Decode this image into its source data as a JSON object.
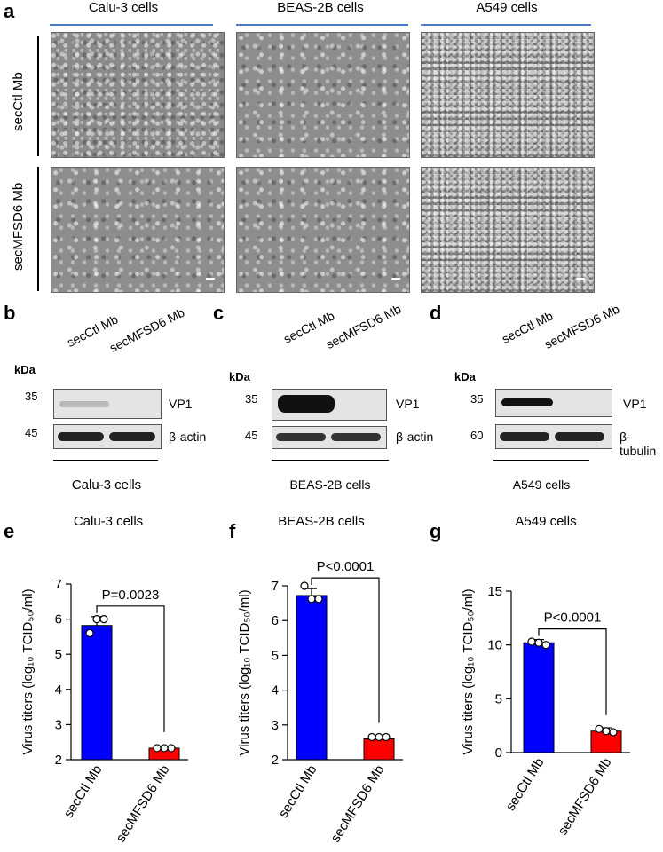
{
  "panel_labels": {
    "a": "a",
    "b": "b",
    "c": "c",
    "d": "d",
    "e": "e",
    "f": "f",
    "g": "g"
  },
  "panel_a": {
    "columns": [
      "Calu-3 cells",
      "BEAS-2B cells",
      "A549 cells"
    ],
    "rows": [
      "secCtl Mb",
      "secMFSD6 Mb"
    ]
  },
  "western": [
    {
      "lanes": [
        "secCtl Mb",
        "secMFSD6 Mb"
      ],
      "kda": "kDa",
      "mw_top": "35",
      "mw_bottom": "45",
      "band_top": "VP1",
      "band_bottom": "β-actin",
      "cell": "Calu-3 cells"
    },
    {
      "lanes": [
        "secCtl Mb",
        "secMFSD6 Mb"
      ],
      "kda": "kDa",
      "mw_top": "35",
      "mw_bottom": "45",
      "band_top": "VP1",
      "band_bottom": "β-actin",
      "cell": "BEAS-2B cells"
    },
    {
      "lanes": [
        "secCtl Mb",
        "secMFSD6 Mb"
      ],
      "kda": "kDa",
      "mw_top": "35",
      "mw_bottom": "60",
      "band_top": "VP1",
      "band_bottom": "β-tubulin",
      "cell": "A549 cells"
    }
  ],
  "colors": {
    "ctl": "#0000ff",
    "mfsd6": "#ff0000",
    "title_line": "#4a7cc9"
  },
  "chart_data": [
    {
      "type": "bar",
      "title": "Calu-3 cells",
      "ylabel": "Virus titers (log₁₀ TCID₅₀/ml)",
      "categories": [
        "secCtl Mb",
        "secMFSD6 Mb"
      ],
      "values": [
        5.82,
        2.33
      ],
      "errors": [
        0.25,
        0.05
      ],
      "points": [
        [
          5.6,
          6.0,
          6.0
        ],
        [
          2.33,
          2.33,
          2.33
        ]
      ],
      "ylim": [
        2,
        7
      ],
      "yticks": [
        2,
        3,
        4,
        5,
        6,
        7
      ],
      "pvalue": "P=0.0023"
    },
    {
      "type": "bar",
      "title": "BEAS-2B cells",
      "ylabel": "Virus titers (log₁₀ TCID₅₀/ml)",
      "categories": [
        "secCtl Mb",
        "secMFSD6 Mb"
      ],
      "values": [
        6.72,
        2.6
      ],
      "errors": [
        0.2,
        0.1
      ],
      "points": [
        [
          7.0,
          6.62,
          6.62
        ],
        [
          2.65,
          2.65,
          2.65
        ]
      ],
      "ylim": [
        2,
        7
      ],
      "yticks": [
        2,
        3,
        4,
        5,
        6,
        7
      ],
      "pvalue": "P<0.0001"
    },
    {
      "type": "bar",
      "title": "A549 cells",
      "ylabel": "Virus titers (log₁₀ TCID₅₀/ml)",
      "categories": [
        "secCtl Mb",
        "secMFSD6 Mb"
      ],
      "values": [
        10.2,
        2.0
      ],
      "errors": [
        0.3,
        0.3
      ],
      "points": [
        [
          10.3,
          10.2,
          10.0
        ],
        [
          2.2,
          2.0,
          1.9
        ]
      ],
      "ylim": [
        0,
        15
      ],
      "yticks": [
        0,
        5,
        10,
        15
      ],
      "pvalue": "P<0.0001"
    }
  ]
}
